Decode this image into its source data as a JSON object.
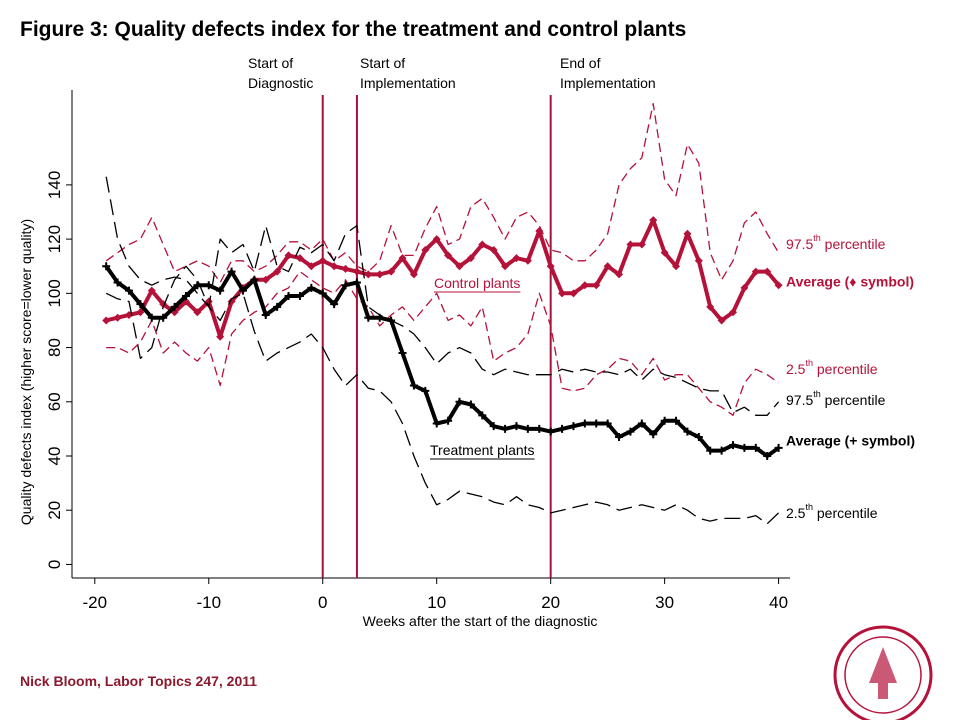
{
  "chart_data": {
    "type": "line",
    "title": "Figure 3: Quality defects index for the treatment and control plants",
    "x_label": "Weeks after the start of the diagnostic",
    "y_label": "Quality defects index (higher score=lower quality)",
    "footer": "Nick Bloom, Labor Topics 247, 2011",
    "xlim": [
      -22,
      41
    ],
    "xticks": [
      -20,
      -10,
      0,
      10,
      20,
      30,
      40
    ],
    "ylim": [
      -5,
      175
    ],
    "yticks": [
      0,
      20,
      40,
      60,
      80,
      100,
      120,
      140
    ],
    "vlines": [
      {
        "x": 0,
        "label": [
          "Start of",
          "Diagnostic"
        ],
        "color": "#a3123a"
      },
      {
        "x": 3,
        "label": [
          "Start of",
          "Implementation"
        ],
        "color": "#a3123a"
      },
      {
        "x": 20,
        "label": [
          "End of",
          "Implementation"
        ],
        "color": "#a3123a"
      }
    ],
    "annotations": [
      "Control plants",
      "Treatment plants"
    ],
    "x": [
      -19,
      -18,
      -17,
      -16,
      -15,
      -14,
      -13,
      -12,
      -11,
      -10,
      -9,
      -8,
      -7,
      -6,
      -5,
      -4,
      -3,
      -2,
      -1,
      0,
      1,
      2,
      3,
      4,
      5,
      6,
      7,
      8,
      9,
      10,
      11,
      12,
      13,
      14,
      15,
      16,
      17,
      18,
      19,
      20,
      21,
      22,
      23,
      24,
      25,
      26,
      27,
      28,
      29,
      30,
      31,
      32,
      33,
      34,
      35,
      36,
      37,
      38,
      39,
      40
    ],
    "series": [
      {
        "name": "97.5th percentile",
        "color": "#b5123a",
        "line_style": "dashed",
        "values": [
          112,
          115,
          118,
          120,
          128,
          118,
          108,
          110,
          112,
          110,
          104,
          112,
          112,
          108,
          110,
          114,
          119,
          119,
          116,
          120,
          112,
          115,
          110,
          108,
          112,
          125,
          114,
          114,
          124,
          132,
          118,
          120,
          132,
          135,
          128,
          120,
          128,
          130,
          125,
          116,
          115,
          112,
          112,
          116,
          122,
          140,
          146,
          150,
          170,
          142,
          136,
          155,
          148,
          115,
          105,
          112,
          126,
          130,
          122,
          115
        ]
      },
      {
        "name": "Average (♦ symbol)",
        "color": "#b5123a",
        "line_style": "solid",
        "marker": "diamond",
        "values": [
          90,
          91,
          92,
          93,
          101,
          96,
          93,
          97,
          93,
          97,
          84,
          97,
          102,
          105,
          105,
          108,
          114,
          113,
          110,
          112,
          110,
          109,
          108,
          107,
          107,
          108,
          113,
          107,
          116,
          120,
          114,
          110,
          113,
          118,
          116,
          110,
          113,
          112,
          123,
          110,
          100,
          100,
          103,
          103,
          110,
          107,
          118,
          118,
          127,
          115,
          110,
          122,
          112,
          95,
          90,
          93,
          102,
          108,
          108,
          103
        ]
      },
      {
        "name": "2.5th percentile",
        "color": "#b5123a",
        "line_style": "dashed",
        "values": [
          80,
          80,
          78,
          82,
          90,
          78,
          82,
          78,
          75,
          80,
          66,
          85,
          90,
          93,
          95,
          100,
          102,
          108,
          105,
          102,
          100,
          105,
          98,
          95,
          88,
          92,
          95,
          90,
          95,
          100,
          90,
          92,
          88,
          95,
          75,
          78,
          80,
          85,
          100,
          88,
          65,
          64,
          65,
          70,
          72,
          76,
          75,
          70,
          76,
          68,
          70,
          70,
          65,
          60,
          58,
          55,
          67,
          72,
          70,
          67
        ]
      },
      {
        "name": "97.5th percentile",
        "color": "#000000",
        "line_style": "longdash",
        "values": [
          100,
          98,
          97,
          76,
          80,
          95,
          105,
          110,
          105,
          95,
          120,
          115,
          118,
          108,
          125,
          110,
          108,
          117,
          115,
          118,
          112,
          122,
          125,
          95,
          92,
          90,
          88,
          85,
          80,
          74,
          78,
          80,
          78,
          72,
          70,
          72,
          71,
          70,
          70,
          70,
          72,
          71,
          72,
          71,
          71,
          70,
          72,
          68,
          72,
          70,
          69,
          67,
          65,
          64,
          64,
          56,
          58,
          55,
          55,
          60
        ]
      },
      {
        "name": "Average (+ symbol)",
        "color": "#000000",
        "line_style": "solid",
        "marker": "plus",
        "values": [
          110,
          104,
          101,
          96,
          91,
          91,
          95,
          99,
          103,
          103,
          101,
          108,
          101,
          105,
          92,
          95,
          99,
          99,
          102,
          100,
          96,
          103,
          104,
          91,
          91,
          90,
          78,
          66,
          64,
          52,
          53,
          60,
          59,
          55,
          51,
          50,
          51,
          50,
          50,
          49,
          50,
          51,
          52,
          52,
          52,
          47,
          49,
          52,
          48,
          53,
          53,
          49,
          47,
          42,
          42,
          44,
          43,
          43,
          40,
          43
        ]
      },
      {
        "name": "2.5th percentile",
        "color": "#000000",
        "line_style": "longdash",
        "values": [
          143,
          120,
          110,
          105,
          103,
          105,
          106,
          105,
          100,
          95,
          90,
          98,
          100,
          86,
          75,
          78,
          80,
          82,
          85,
          80,
          72,
          66,
          70,
          65,
          64,
          60,
          52,
          40,
          30,
          22,
          24,
          27,
          26,
          25,
          23,
          22,
          25,
          22,
          21,
          19,
          20,
          21,
          22,
          23,
          22,
          20,
          21,
          22,
          21,
          20,
          22,
          20,
          17,
          16,
          17,
          17,
          17,
          18,
          15,
          19
        ]
      }
    ]
  }
}
